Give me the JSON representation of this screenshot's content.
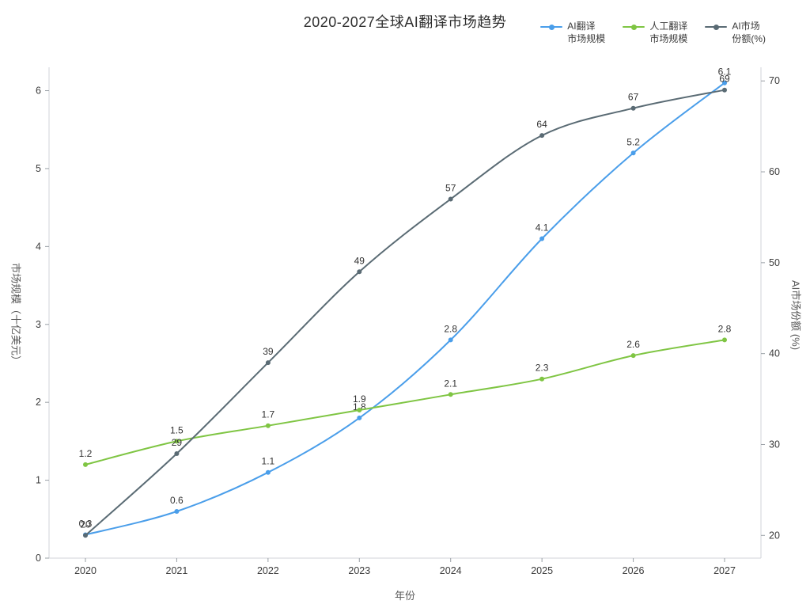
{
  "chart_data": {
    "type": "line",
    "title": "2020-2027全球AI翻译市场趋势",
    "xlabel": "年份",
    "ylabel_left": "市场规模（十亿美元）",
    "ylabel_right": "AI市场份额 (%)",
    "categories": [
      "2020",
      "2021",
      "2022",
      "2023",
      "2024",
      "2025",
      "2026",
      "2027"
    ],
    "yticks_left": [
      "0",
      "1",
      "2",
      "3",
      "4",
      "5",
      "6"
    ],
    "yticks_right": [
      "20",
      "30",
      "40",
      "50",
      "60",
      "70"
    ],
    "ylim_left": [
      0,
      6.3
    ],
    "ylim_right": [
      17.5,
      71.5
    ],
    "grid": false,
    "legend_position": "top-right",
    "colors": {
      "spine": "#d0d3d8",
      "tick_mark": "#9aa0a6",
      "text": "#3a3a3a"
    },
    "series": [
      {
        "name_lines": [
          "AI翻译",
          "市场规模"
        ],
        "axis": "left",
        "color": "#4a9eea",
        "values": [
          0.3,
          0.6,
          1.1,
          1.8,
          2.8,
          4.1,
          5.2,
          6.1
        ],
        "labels": [
          "0.3",
          "0.6",
          "1.1",
          "1.8",
          "2.8",
          "4.1",
          "5.2",
          "6.1"
        ]
      },
      {
        "name_lines": [
          "人工翻译",
          "市场规模"
        ],
        "axis": "left",
        "color": "#7fc543",
        "values": [
          1.2,
          1.5,
          1.7,
          1.9,
          2.1,
          2.3,
          2.6,
          2.8
        ],
        "labels": [
          "1.2",
          "1.5",
          "1.7",
          "1.9",
          "2.1",
          "2.3",
          "2.6",
          "2.8"
        ]
      },
      {
        "name_lines": [
          "AI市场",
          "份额(%)"
        ],
        "axis": "right",
        "color": "#5a6b74",
        "values": [
          20,
          29,
          39,
          49,
          57,
          64,
          67,
          69
        ],
        "labels": [
          "20",
          "29",
          "39",
          "49",
          "57",
          "64",
          "67",
          "69"
        ]
      }
    ]
  }
}
